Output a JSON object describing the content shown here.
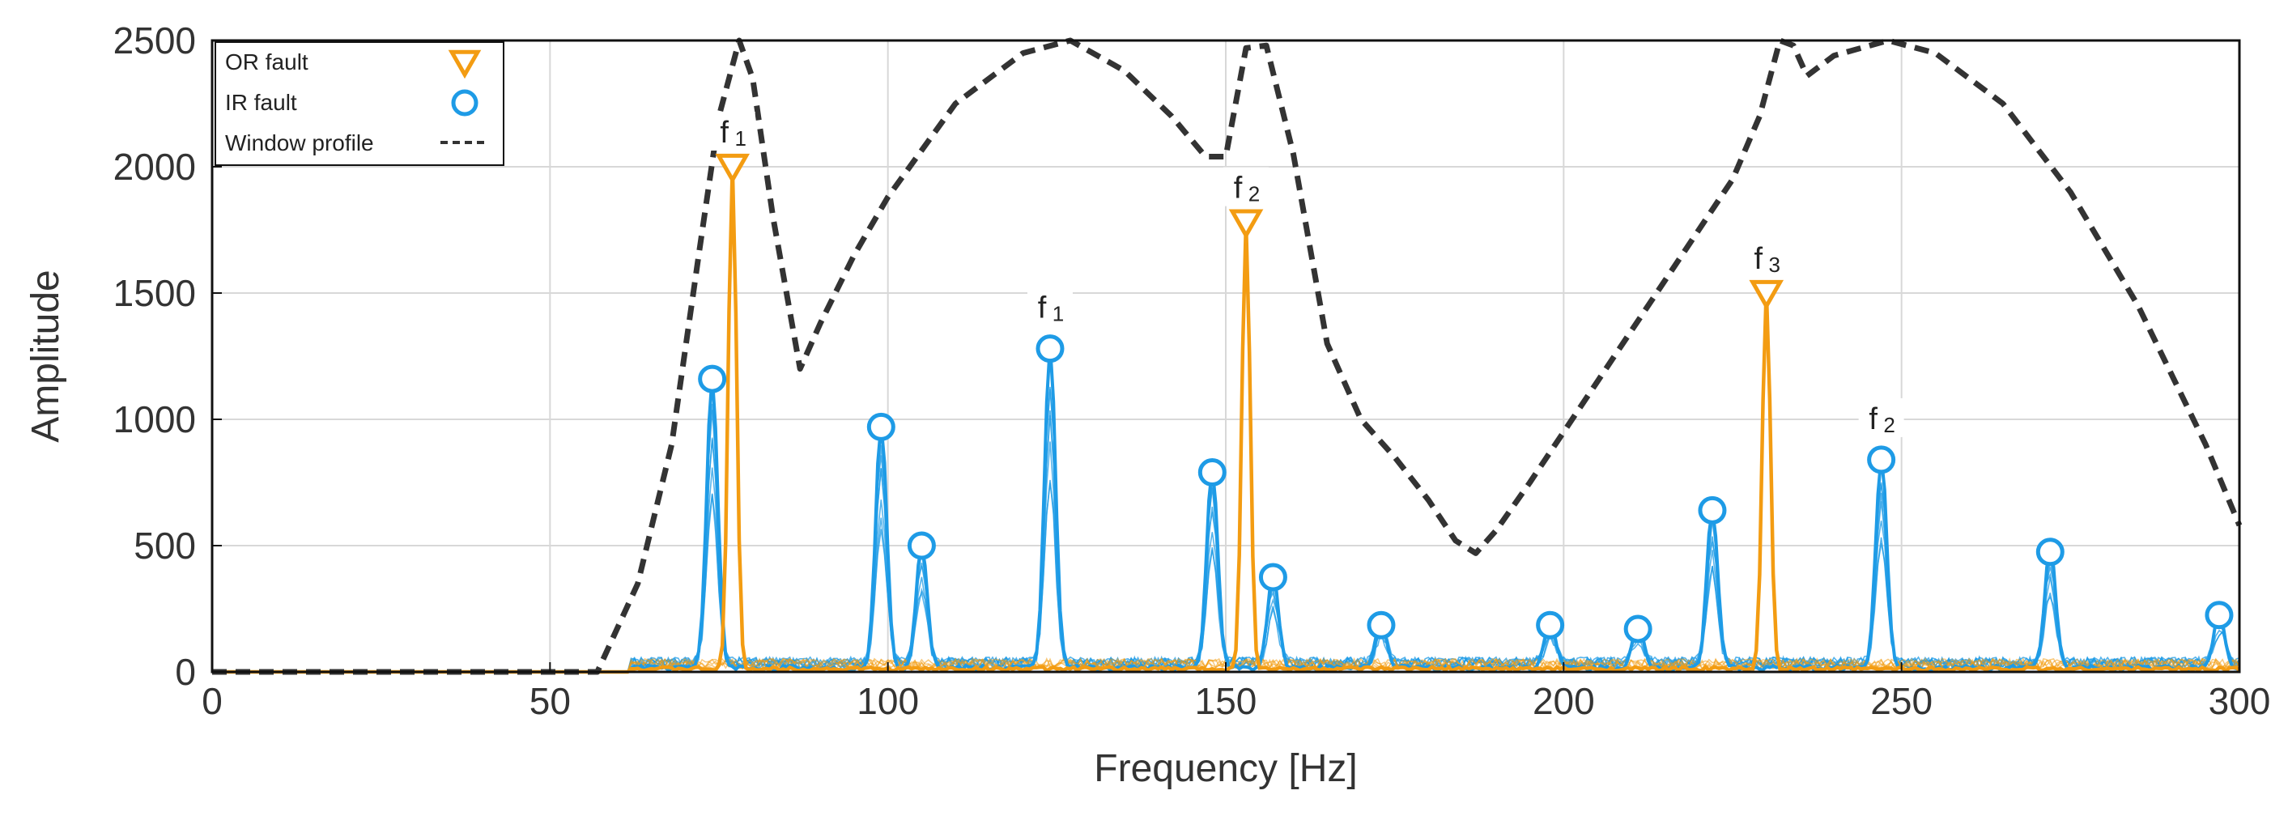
{
  "chart_data": {
    "type": "line",
    "title": "",
    "xlabel": "Frequency [Hz]",
    "ylabel": "Amplitude",
    "xlim": [
      0,
      300
    ],
    "ylim": [
      0,
      2500
    ],
    "x_ticks": [
      0,
      50,
      100,
      150,
      200,
      250,
      300
    ],
    "y_ticks": [
      0,
      500,
      1000,
      1500,
      2000,
      2500
    ],
    "grid": true,
    "legend_position": "top-left",
    "legend": [
      {
        "label": "OR fault",
        "marker": "triangle-down",
        "color": "#F39C12"
      },
      {
        "label": "IR fault",
        "marker": "circle",
        "color": "#1E9BE6"
      },
      {
        "label": "Window profile",
        "marker": "dashed-line",
        "color": "#333333"
      }
    ],
    "series": [
      {
        "name": "Window profile",
        "style": "dashed",
        "x": [
          57,
          63,
          68,
          72,
          75,
          78,
          80,
          83,
          87,
          90,
          95,
          100,
          110,
          120,
          127,
          135,
          142,
          147,
          150,
          153,
          156,
          160,
          165,
          170,
          175,
          180,
          184,
          187,
          190,
          195,
          205,
          215,
          225,
          229,
          232,
          234,
          236,
          240,
          248,
          255,
          265,
          275,
          285,
          295,
          300
        ],
        "y": [
          0,
          350,
          900,
          1650,
          2200,
          2500,
          2350,
          1800,
          1200,
          1380,
          1650,
          1880,
          2250,
          2450,
          2500,
          2380,
          2200,
          2040,
          2040,
          2470,
          2480,
          2050,
          1300,
          1000,
          850,
          680,
          520,
          470,
          560,
          750,
          1150,
          1550,
          1950,
          2200,
          2500,
          2480,
          2360,
          2440,
          2500,
          2450,
          2250,
          1900,
          1450,
          900,
          580
        ]
      },
      {
        "name": "OR fault",
        "peaks": [
          {
            "x": 77,
            "y": 2000,
            "label": "f",
            "sub": "1"
          },
          {
            "x": 153,
            "y": 1780,
            "label": "f",
            "sub": "2"
          },
          {
            "x": 230,
            "y": 1500,
            "label": "f",
            "sub": "3"
          }
        ]
      },
      {
        "name": "IR fault",
        "peaks": [
          {
            "x": 74,
            "y": 1160
          },
          {
            "x": 99,
            "y": 970
          },
          {
            "x": 105,
            "y": 500
          },
          {
            "x": 124,
            "y": 1280,
            "label": "f",
            "sub": "1"
          },
          {
            "x": 148,
            "y": 790
          },
          {
            "x": 157,
            "y": 375
          },
          {
            "x": 173,
            "y": 185
          },
          {
            "x": 198,
            "y": 185
          },
          {
            "x": 211,
            "y": 170
          },
          {
            "x": 222,
            "y": 640
          },
          {
            "x": 247,
            "y": 840,
            "label": "f",
            "sub": "2"
          },
          {
            "x": 272,
            "y": 475
          },
          {
            "x": 297,
            "y": 225
          }
        ]
      }
    ]
  }
}
